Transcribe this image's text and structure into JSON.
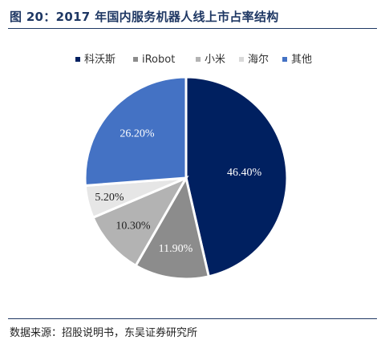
{
  "figure": {
    "title": "图 20：2017 年国内服务机器人线上市占率结构",
    "source": "数据来源：招股说明书，东吴证券研究所"
  },
  "chart_data": {
    "type": "pie",
    "categories": [
      "科沃斯",
      "iRobot",
      "小米",
      "海尔",
      "其他"
    ],
    "values": [
      46.4,
      11.9,
      10.3,
      5.2,
      26.2
    ],
    "labels": [
      "46.40%",
      "11.90%",
      "10.30%",
      "5.20%",
      "26.20%"
    ],
    "colors": [
      "#002060",
      "#8c8c8c",
      "#b3b3b3",
      "#e6e6e6",
      "#4472c4"
    ],
    "label_colors": [
      "#ffffff",
      "#ffffff",
      "#222222",
      "#222222",
      "#ffffff"
    ],
    "start": "12 o'clock",
    "direction": "clockwise",
    "legend_position": "top"
  }
}
